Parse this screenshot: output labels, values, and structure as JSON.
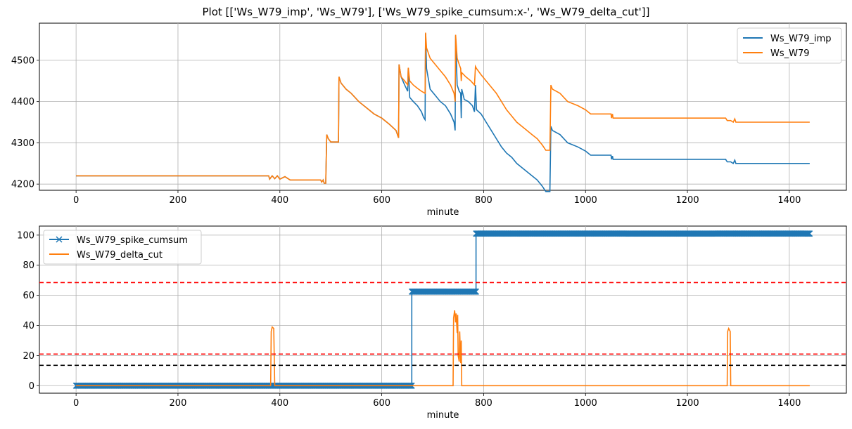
{
  "figure_title": "Plot [['Ws_W79_imp', 'Ws_W79'], ['Ws_W79_spike_cumsum:x-', 'Ws_W79_delta_cut']]",
  "colors": {
    "blue": "#1f77b4",
    "orange": "#ff7f0e",
    "red": "#ff0000",
    "black": "#000000",
    "grid": "#b0b0b0"
  },
  "chart_data": [
    {
      "type": "line",
      "xlabel": "minute",
      "ylabel": "",
      "xlim": [
        -72,
        1512
      ],
      "ylim": [
        4185,
        4590
      ],
      "xticks": [
        0,
        200,
        400,
        600,
        800,
        1000,
        1200,
        1400
      ],
      "yticks": [
        4200,
        4300,
        4400,
        4500
      ],
      "grid": true,
      "legend": "top-right",
      "series": [
        {
          "name": "Ws_W79_imp",
          "color": "#1f77b4",
          "points": [
            [
              0,
              4220
            ],
            [
              378,
              4220
            ],
            [
              380,
              4212
            ],
            [
              385,
              4220
            ],
            [
              390,
              4213
            ],
            [
              395,
              4220
            ],
            [
              400,
              4212
            ],
            [
              410,
              4218
            ],
            [
              420,
              4210
            ],
            [
              480,
              4210
            ],
            [
              482,
              4205
            ],
            [
              485,
              4210
            ],
            [
              487,
              4202
            ],
            [
              490,
              4202
            ],
            [
              492,
              4320
            ],
            [
              495,
              4310
            ],
            [
              500,
              4302
            ],
            [
              515,
              4302
            ],
            [
              516,
              4460
            ],
            [
              520,
              4445
            ],
            [
              530,
              4430
            ],
            [
              540,
              4420
            ],
            [
              555,
              4400
            ],
            [
              570,
              4385
            ],
            [
              585,
              4370
            ],
            [
              600,
              4360
            ],
            [
              615,
              4345
            ],
            [
              628,
              4330
            ],
            [
              633,
              4312
            ],
            [
              634,
              4490
            ],
            [
              638,
              4460
            ],
            [
              645,
              4440
            ],
            [
              651,
              4425
            ],
            [
              652,
              4482
            ],
            [
              655,
              4410
            ],
            [
              662,
              4400
            ],
            [
              670,
              4390
            ],
            [
              678,
              4375
            ],
            [
              682,
              4362
            ],
            [
              685,
              4356
            ],
            [
              686,
              4565
            ],
            [
              688,
              4480
            ],
            [
              695,
              4430
            ],
            [
              705,
              4415
            ],
            [
              715,
              4400
            ],
            [
              725,
              4390
            ],
            [
              735,
              4370
            ],
            [
              742,
              4350
            ],
            [
              744,
              4330
            ],
            [
              745,
              4560
            ],
            [
              748,
              4440
            ],
            [
              752,
              4425
            ],
            [
              755,
              4420
            ],
            [
              756,
              4360
            ],
            [
              757,
              4430
            ],
            [
              762,
              4405
            ],
            [
              770,
              4400
            ],
            [
              778,
              4390
            ],
            [
              782,
              4375
            ],
            [
              784,
              4440
            ],
            [
              786,
              4380
            ],
            [
              795,
              4370
            ],
            [
              805,
              4350
            ],
            [
              815,
              4330
            ],
            [
              825,
              4310
            ],
            [
              835,
              4290
            ],
            [
              845,
              4275
            ],
            [
              855,
              4265
            ],
            [
              865,
              4250
            ],
            [
              880,
              4235
            ],
            [
              895,
              4220
            ],
            [
              905,
              4210
            ],
            [
              915,
              4195
            ],
            [
              922,
              4182
            ],
            [
              930,
              4182
            ],
            [
              932,
              4340
            ],
            [
              935,
              4330
            ],
            [
              950,
              4320
            ],
            [
              965,
              4300
            ],
            [
              985,
              4290
            ],
            [
              1000,
              4280
            ],
            [
              1010,
              4270
            ],
            [
              1050,
              4270
            ],
            [
              1051,
              4260
            ],
            [
              1053,
              4268
            ],
            [
              1054,
              4260
            ],
            [
              1275,
              4260
            ],
            [
              1278,
              4254
            ],
            [
              1285,
              4254
            ],
            [
              1290,
              4250
            ],
            [
              1293,
              4258
            ],
            [
              1295,
              4250
            ],
            [
              1440,
              4250
            ]
          ]
        },
        {
          "name": "Ws_W79",
          "color": "#ff7f0e",
          "points": [
            [
              0,
              4220
            ],
            [
              378,
              4220
            ],
            [
              380,
              4212
            ],
            [
              385,
              4220
            ],
            [
              390,
              4213
            ],
            [
              395,
              4220
            ],
            [
              400,
              4212
            ],
            [
              410,
              4218
            ],
            [
              420,
              4210
            ],
            [
              480,
              4210
            ],
            [
              482,
              4205
            ],
            [
              485,
              4210
            ],
            [
              487,
              4202
            ],
            [
              490,
              4202
            ],
            [
              492,
              4320
            ],
            [
              495,
              4310
            ],
            [
              500,
              4302
            ],
            [
              515,
              4302
            ],
            [
              516,
              4460
            ],
            [
              520,
              4445
            ],
            [
              530,
              4430
            ],
            [
              540,
              4420
            ],
            [
              555,
              4400
            ],
            [
              570,
              4385
            ],
            [
              585,
              4370
            ],
            [
              600,
              4360
            ],
            [
              615,
              4345
            ],
            [
              628,
              4330
            ],
            [
              633,
              4312
            ],
            [
              634,
              4490
            ],
            [
              638,
              4460
            ],
            [
              645,
              4450
            ],
            [
              651,
              4440
            ],
            [
              652,
              4482
            ],
            [
              655,
              4450
            ],
            [
              662,
              4440
            ],
            [
              670,
              4432
            ],
            [
              678,
              4425
            ],
            [
              685,
              4420
            ],
            [
              686,
              4567
            ],
            [
              688,
              4530
            ],
            [
              695,
              4505
            ],
            [
              705,
              4490
            ],
            [
              715,
              4475
            ],
            [
              725,
              4460
            ],
            [
              735,
              4440
            ],
            [
              742,
              4420
            ],
            [
              744,
              4400
            ],
            [
              745,
              4562
            ],
            [
              748,
              4505
            ],
            [
              752,
              4490
            ],
            [
              755,
              4480
            ],
            [
              756,
              4450
            ],
            [
              757,
              4470
            ],
            [
              765,
              4460
            ],
            [
              775,
              4450
            ],
            [
              782,
              4440
            ],
            [
              784,
              4485
            ],
            [
              786,
              4480
            ],
            [
              795,
              4465
            ],
            [
              805,
              4450
            ],
            [
              815,
              4435
            ],
            [
              825,
              4420
            ],
            [
              835,
              4400
            ],
            [
              845,
              4380
            ],
            [
              855,
              4365
            ],
            [
              865,
              4350
            ],
            [
              880,
              4335
            ],
            [
              895,
              4320
            ],
            [
              905,
              4310
            ],
            [
              915,
              4295
            ],
            [
              922,
              4282
            ],
            [
              930,
              4282
            ],
            [
              932,
              4440
            ],
            [
              935,
              4430
            ],
            [
              950,
              4420
            ],
            [
              965,
              4400
            ],
            [
              985,
              4390
            ],
            [
              1000,
              4380
            ],
            [
              1010,
              4370
            ],
            [
              1050,
              4370
            ],
            [
              1051,
              4360
            ],
            [
              1053,
              4370
            ],
            [
              1054,
              4360
            ],
            [
              1275,
              4360
            ],
            [
              1278,
              4354
            ],
            [
              1285,
              4354
            ],
            [
              1290,
              4350
            ],
            [
              1293,
              4358
            ],
            [
              1295,
              4350
            ],
            [
              1440,
              4350
            ]
          ]
        }
      ]
    },
    {
      "type": "line",
      "xlabel": "minute",
      "ylabel": "",
      "xlim": [
        -72,
        1512
      ],
      "ylim": [
        -5,
        106
      ],
      "xticks": [
        0,
        200,
        400,
        600,
        800,
        1000,
        1200,
        1400
      ],
      "yticks": [
        0,
        20,
        40,
        60,
        80,
        100
      ],
      "grid": true,
      "legend": "top-left",
      "series": [
        {
          "name": "Ws_W79_spike_cumsum",
          "color": "#1f77b4",
          "marker": "x",
          "segments": [
            {
              "x_start": 0,
              "x_end": 659,
              "value": 0
            },
            {
              "x_start": 659,
              "x_end": 785,
              "value": 62.5
            },
            {
              "x_start": 785,
              "x_end": 1440,
              "value": 101
            }
          ]
        },
        {
          "name": "Ws_W79_delta_cut",
          "color": "#ff7f0e",
          "points": [
            [
              0,
              0
            ],
            [
              382,
              0
            ],
            [
              383,
              36
            ],
            [
              385,
              39
            ],
            [
              388,
              38
            ],
            [
              390,
              0
            ],
            [
              740,
              0
            ],
            [
              741,
              45
            ],
            [
              743,
              50
            ],
            [
              745,
              42
            ],
            [
              746,
              48
            ],
            [
              748,
              35
            ],
            [
              749,
              47
            ],
            [
              750,
              20
            ],
            [
              752,
              16
            ],
            [
              753,
              36
            ],
            [
              755,
              15
            ],
            [
              756,
              30
            ],
            [
              757,
              0
            ],
            [
              1278,
              0
            ],
            [
              1279,
              36
            ],
            [
              1281,
              38
            ],
            [
              1284,
              36
            ],
            [
              1285,
              0
            ],
            [
              1440,
              0
            ]
          ]
        }
      ],
      "hlines": [
        {
          "y": 68.5,
          "color": "#ff0000",
          "style": "dashed"
        },
        {
          "y": 21,
          "color": "#ff0000",
          "style": "dashed"
        },
        {
          "y": 13.5,
          "color": "#000000",
          "style": "dashed"
        }
      ]
    }
  ]
}
